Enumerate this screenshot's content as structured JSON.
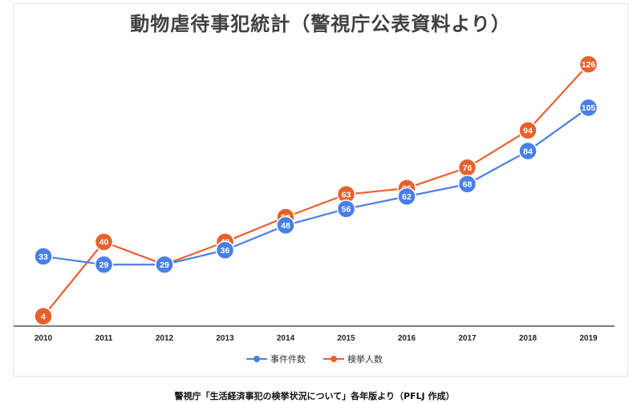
{
  "chart_data": {
    "type": "line",
    "title": "動物虐待事犯統計（警視庁公表資料より）",
    "categories": [
      "2010",
      "2011",
      "2012",
      "2013",
      "2014",
      "2015",
      "2016",
      "2017",
      "2018",
      "2019"
    ],
    "series": [
      {
        "name": "事件件数",
        "color": "#4a7fe8",
        "values": [
          33,
          29,
          29,
          36,
          48,
          56,
          62,
          68,
          84,
          105
        ]
      },
      {
        "name": "検挙人数",
        "color": "#e8612c",
        "values": [
          4,
          40,
          29,
          40,
          52,
          63,
          66,
          76,
          94,
          126
        ]
      }
    ],
    "ylim": [
      0,
      130
    ],
    "grid": false,
    "legend": "bottom-center"
  },
  "footer": {
    "source": "警視庁「生活経済事犯の検挙状況について」各年版より（PFLJ 作成）"
  }
}
